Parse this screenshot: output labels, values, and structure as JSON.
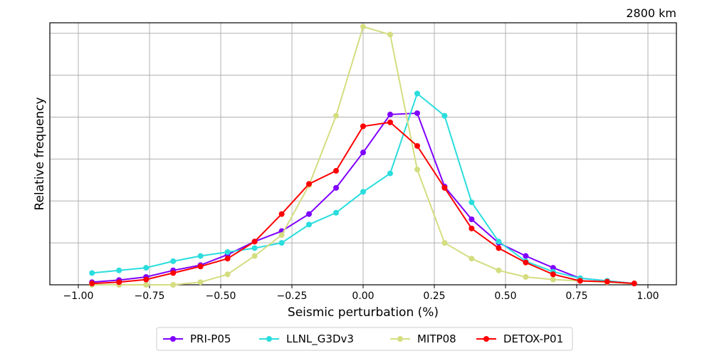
{
  "chart_data": {
    "type": "line",
    "title": "2800 km",
    "xlabel": "Seismic perturbation (%)",
    "ylabel": "Relative frequency",
    "xlim": [
      -1.1,
      1.1
    ],
    "ylim": [
      0,
      1.0
    ],
    "grid": true,
    "legend_position": "bottom-center",
    "x": [
      -0.952,
      -0.857,
      -0.762,
      -0.667,
      -0.571,
      -0.476,
      -0.381,
      -0.286,
      -0.19,
      -0.095,
      0.0,
      0.095,
      0.19,
      0.286,
      0.381,
      0.476,
      0.571,
      0.667,
      0.762,
      0.857,
      0.952
    ],
    "x_ticks": [
      {
        "value": -1.0,
        "label": "−1.00"
      },
      {
        "value": -0.75,
        "label": "−0.75"
      },
      {
        "value": -0.5,
        "label": "−0.50"
      },
      {
        "value": -0.25,
        "label": "−0.25"
      },
      {
        "value": 0.0,
        "label": "0.00"
      },
      {
        "value": 0.25,
        "label": "0.25"
      },
      {
        "value": 0.5,
        "label": "0.50"
      },
      {
        "value": 0.75,
        "label": "0.75"
      },
      {
        "value": 1.0,
        "label": "1.00"
      }
    ],
    "y_grid": [
      0.16,
      0.32,
      0.48,
      0.64,
      0.8,
      0.96
    ],
    "series": [
      {
        "name": "PRI-P05",
        "color": "#7f00ff",
        "values": [
          0.01,
          0.018,
          0.03,
          0.055,
          0.075,
          0.115,
          0.165,
          0.205,
          0.27,
          0.37,
          0.505,
          0.65,
          0.655,
          0.375,
          0.25,
          0.16,
          0.11,
          0.065,
          0.025,
          0.015,
          0.005
        ]
      },
      {
        "name": "LLNL_G3Dv3",
        "color": "#2adddd",
        "values": [
          0.045,
          0.055,
          0.065,
          0.09,
          0.11,
          0.125,
          0.14,
          0.16,
          0.23,
          0.275,
          0.355,
          0.425,
          0.73,
          0.645,
          0.315,
          0.165,
          0.09,
          0.05,
          0.025,
          0.015,
          0.005
        ]
      },
      {
        "name": "MITP08",
        "color": "#d4dd80",
        "values": [
          0.0,
          0.0,
          0.0,
          0.0,
          0.01,
          0.04,
          0.11,
          0.19,
          0.38,
          0.645,
          0.985,
          0.955,
          0.44,
          0.16,
          0.1,
          0.055,
          0.03,
          0.02,
          0.015,
          0.01,
          0.005
        ]
      },
      {
        "name": "DETOX-P01",
        "color": "#ff0000",
        "values": [
          0.005,
          0.01,
          0.02,
          0.045,
          0.07,
          0.1,
          0.165,
          0.27,
          0.385,
          0.435,
          0.605,
          0.62,
          0.53,
          0.37,
          0.215,
          0.14,
          0.085,
          0.04,
          0.015,
          0.012,
          0.005
        ]
      }
    ]
  }
}
